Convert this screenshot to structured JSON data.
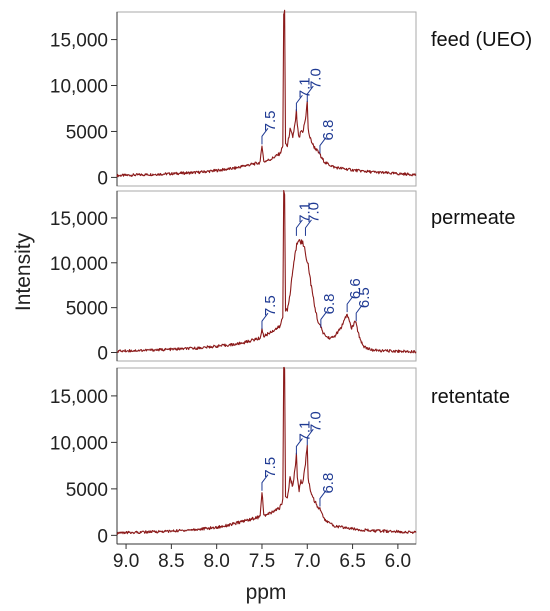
{
  "chart_data": {
    "type": "line",
    "xlabel": "ppm",
    "ylabel": "Intensity",
    "x_range": [
      9.1,
      5.8
    ],
    "x_reversed": true,
    "x_ticks": [
      "9.0",
      "8.5",
      "8.0",
      "7.5",
      "7.0",
      "6.5",
      "6.0"
    ],
    "y_range": [
      -500,
      18000
    ],
    "y_ticks": [
      "15,000",
      "10,000",
      "5000",
      "0"
    ],
    "y_tick_values": [
      15000,
      10000,
      5000,
      0
    ],
    "line_color": "#8B1A1A",
    "annotation_color": "#1F3A93",
    "grid": false,
    "panels": [
      {
        "label": "feed (UEO)",
        "peak_labels": [
          {
            "text": "7.5",
            "ppm": 7.5,
            "height": 3600
          },
          {
            "text": "7.1",
            "ppm": 7.12,
            "height": 7200
          },
          {
            "text": "7.0",
            "ppm": 7.0,
            "height": 8200
          },
          {
            "text": "6.8",
            "ppm": 6.86,
            "height": 2600
          }
        ],
        "series": [
          {
            "x": [
              9.1,
              8.8,
              8.5,
              8.2,
              8.0,
              7.8,
              7.7,
              7.6,
              7.52,
              7.5,
              7.48,
              7.4,
              7.3,
              7.27,
              7.26,
              7.25,
              7.24,
              7.22,
              7.19,
              7.16,
              7.13,
              7.12,
              7.11,
              7.09,
              7.07,
              7.05,
              7.03,
              7.02,
              7.01,
              7.0,
              6.99,
              6.97,
              6.93,
              6.89,
              6.87,
              6.86,
              6.85,
              6.8,
              6.7,
              6.5,
              6.3,
              6.0,
              5.8
            ],
            "y": [
              200,
              300,
              400,
              550,
              750,
              1000,
              1250,
              1450,
              1600,
              3600,
              1700,
              2000,
              2600,
              3400,
              18000,
              18000,
              3700,
              3400,
              5200,
              4400,
              6100,
              7200,
              5600,
              4200,
              5000,
              4800,
              5900,
              6300,
              7400,
              8200,
              5200,
              4300,
              3400,
              2900,
              2600,
              2600,
              2200,
              1600,
              1100,
              800,
              600,
              400,
              300
            ]
          }
        ]
      },
      {
        "label": "permeate",
        "peak_labels": [
          {
            "text": "7.5",
            "ppm": 7.5,
            "height": 2600
          },
          {
            "text": "7.1",
            "ppm": 7.12,
            "height": 13000
          },
          {
            "text": "7.0",
            "ppm": 7.02,
            "height": 13000
          },
          {
            "text": "6.8",
            "ppm": 6.85,
            "height": 2800
          },
          {
            "text": "6.6",
            "ppm": 6.56,
            "height": 4500
          },
          {
            "text": "6.5",
            "ppm": 6.46,
            "height": 3500
          }
        ],
        "series": [
          {
            "x": [
              9.1,
              8.8,
              8.5,
              8.2,
              8.0,
              7.8,
              7.7,
              7.6,
              7.52,
              7.5,
              7.48,
              7.4,
              7.3,
              7.27,
              7.26,
              7.25,
              7.24,
              7.22,
              7.19,
              7.16,
              7.13,
              7.11,
              7.09,
              7.07,
              7.05,
              7.03,
              7.01,
              6.99,
              6.96,
              6.92,
              6.88,
              6.85,
              6.82,
              6.78,
              6.74,
              6.7,
              6.66,
              6.62,
              6.58,
              6.56,
              6.54,
              6.51,
              6.49,
              6.47,
              6.45,
              6.42,
              6.38,
              6.3,
              6.2,
              6.0,
              5.8
            ],
            "y": [
              150,
              250,
              350,
              500,
              700,
              900,
              1100,
              1400,
              1600,
              2600,
              1800,
              2300,
              2900,
              4000,
              18000,
              18000,
              4800,
              4600,
              6500,
              9200,
              11200,
              12300,
              12800,
              12400,
              12200,
              11600,
              10600,
              9800,
              7700,
              5200,
              3400,
              2800,
              2100,
              1700,
              1600,
              1800,
              2300,
              2900,
              3800,
              4300,
              3600,
              2700,
              3100,
              3500,
              2700,
              1600,
              700,
              300,
              200,
              150,
              100
            ]
          }
        ]
      },
      {
        "label": "retentate",
        "peak_labels": [
          {
            "text": "7.5",
            "ppm": 7.5,
            "height": 4800
          },
          {
            "text": "7.1",
            "ppm": 7.12,
            "height": 8700
          },
          {
            "text": "7.0",
            "ppm": 7.0,
            "height": 9700
          },
          {
            "text": "6.8",
            "ppm": 6.86,
            "height": 3100
          }
        ],
        "series": [
          {
            "x": [
              9.1,
              8.8,
              8.5,
              8.2,
              8.0,
              7.8,
              7.7,
              7.6,
              7.52,
              7.5,
              7.48,
              7.4,
              7.3,
              7.27,
              7.26,
              7.25,
              7.24,
              7.22,
              7.19,
              7.16,
              7.13,
              7.12,
              7.11,
              7.09,
              7.07,
              7.05,
              7.03,
              7.02,
              7.01,
              7.0,
              6.99,
              6.97,
              6.93,
              6.89,
              6.87,
              6.86,
              6.85,
              6.8,
              6.7,
              6.5,
              6.3,
              6.0,
              5.8
            ],
            "y": [
              250,
              350,
              450,
              650,
              850,
              1250,
              1550,
              1800,
              2000,
              4800,
              2100,
              2400,
              3000,
              3800,
              18000,
              18000,
              4200,
              4000,
              6200,
              5300,
              7600,
              8700,
              6400,
              4900,
              5800,
              5600,
              7000,
              7600,
              8800,
              9700,
              6100,
              5000,
              3900,
              3200,
              2900,
              3100,
              2500,
              1600,
              1000,
              700,
              500,
              400,
              300
            ]
          }
        ]
      }
    ]
  }
}
